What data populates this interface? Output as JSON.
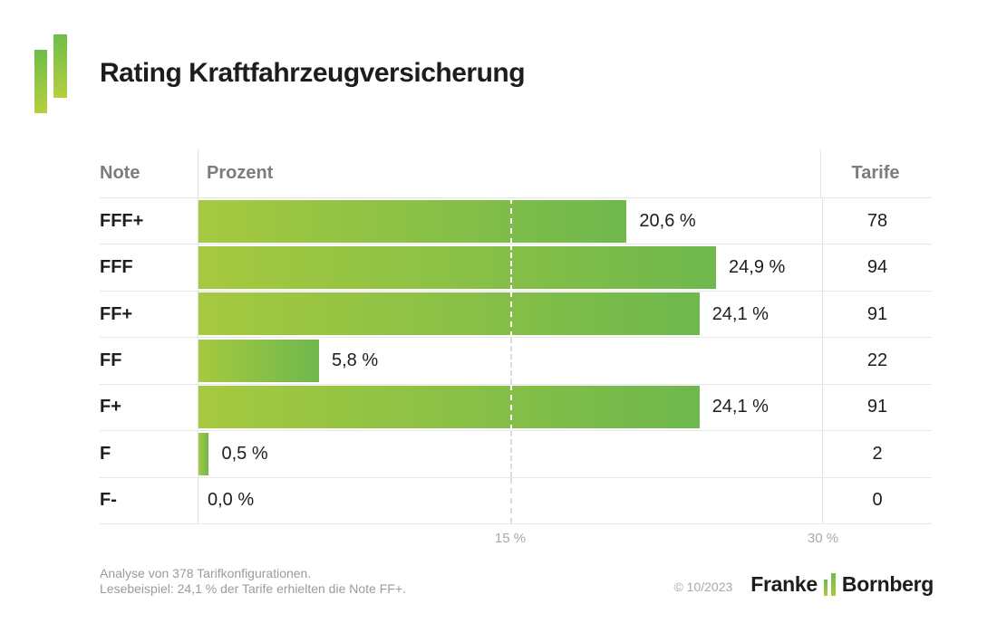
{
  "title": "Rating Kraftfahrzeugversicherung",
  "brand": {
    "logo_icon": "two-green-bars-icon",
    "wordmark_left": "Franke",
    "wordmark_right": "Bornberg"
  },
  "table": {
    "headers": {
      "note": "Note",
      "prozent": "Prozent",
      "tarife": "Tarife"
    }
  },
  "chart_data": {
    "type": "bar",
    "orientation": "horizontal",
    "title": "Rating Kraftfahrzeugversicherung",
    "categories": [
      "FFF+",
      "FFF",
      "FF+",
      "FF",
      "F+",
      "F",
      "F-"
    ],
    "series": [
      {
        "name": "Prozent",
        "values": [
          20.6,
          24.9,
          24.1,
          5.8,
          24.1,
          0.5,
          0.0
        ]
      },
      {
        "name": "Tarife",
        "values": [
          78,
          94,
          91,
          22,
          91,
          2,
          0
        ]
      }
    ],
    "value_labels": [
      "20,6 %",
      "24,9 %",
      "24,1 %",
      "5,8 %",
      "24,1 %",
      "0,5 %",
      "0,0 %"
    ],
    "tarife_labels": [
      "78",
      "94",
      "91",
      "22",
      "91",
      "2",
      "0"
    ],
    "xlim": [
      0,
      30
    ],
    "x_ticks": [
      {
        "value": 15,
        "label": "15 %"
      },
      {
        "value": 30,
        "label": "30 %"
      }
    ],
    "dashed_gridline_at": 15,
    "grid": "dashed vertical at 15 %, solid column border at 30 %",
    "legend": "none",
    "bar_gradient": [
      "#a6c93f",
      "#6fb84d"
    ],
    "dash_color_on_bar": "#ffffff",
    "dash_color_off_bar": "#dcdcdc"
  },
  "footer": {
    "line1": "Analyse von 378 Tarifkonfigurationen.",
    "line2": "Lesebeispiel: 24,1 % der Tarife erhielten die Note FF+.",
    "copyright": "© 10/2023"
  },
  "colors": {
    "title_text": "#1d1d1b",
    "header_text": "#7c7c7c",
    "body_text": "#1d1d1b",
    "axis_text": "#a9a9a9",
    "footnote_text": "#9b9b9b",
    "grid_line": "#e7e7e7",
    "logo_green_top": "#6ebd4b",
    "logo_green_bottom": "#b6cf3e"
  }
}
